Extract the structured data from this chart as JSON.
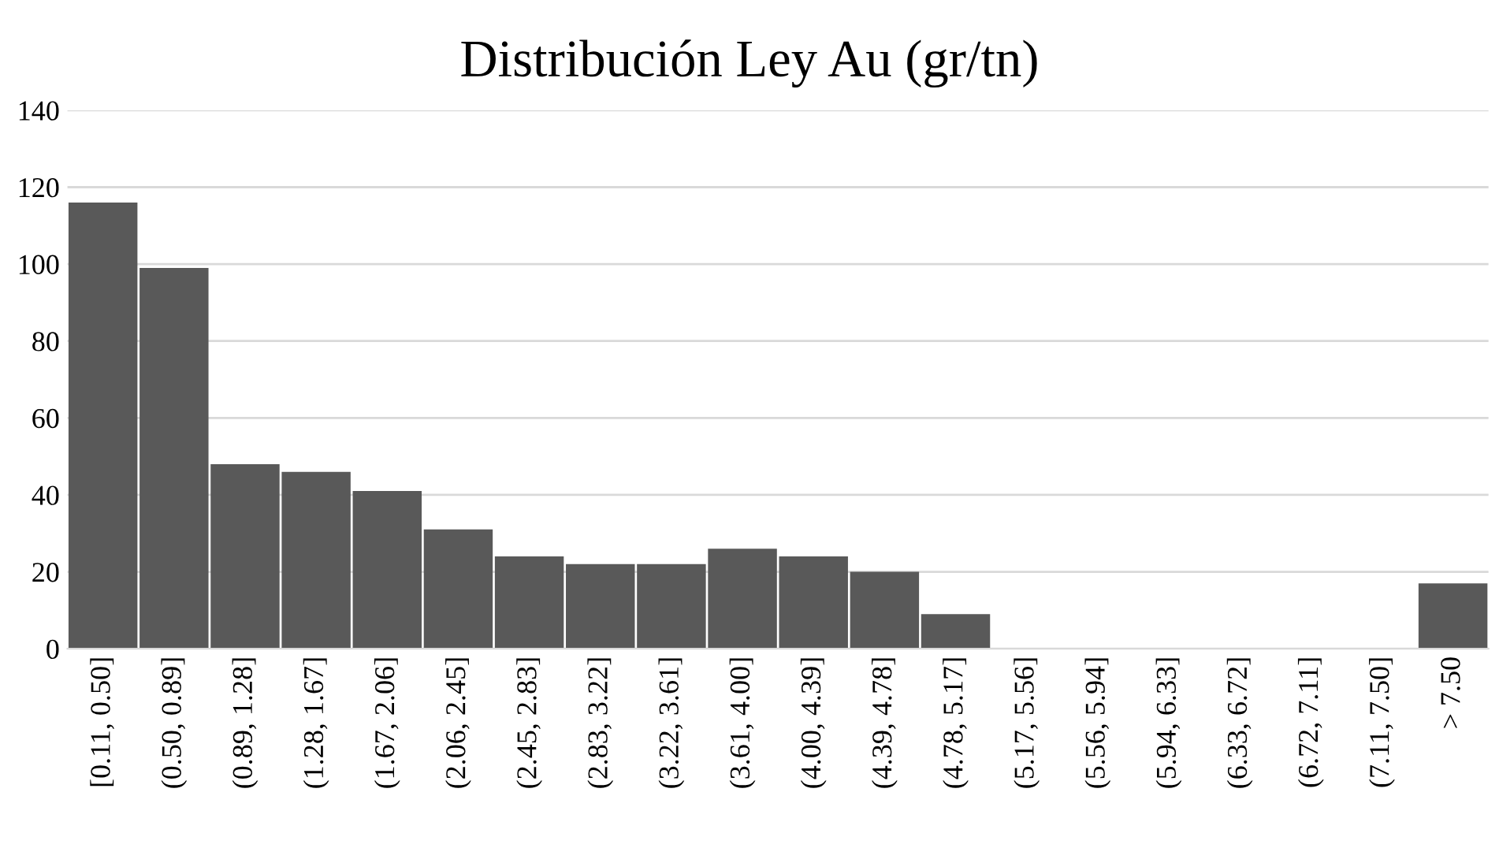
{
  "chart_data": {
    "type": "bar",
    "title": "Distribución Ley Au (gr/tn)",
    "categories": [
      "[0.11, 0.50]",
      "(0.50, 0.89]",
      "(0.89, 1.28]",
      "(1.28, 1.67]",
      "(1.67, 2.06]",
      "(2.06, 2.45]",
      "(2.45, 2.83]",
      "(2.83, 3.22]",
      "(3.22, 3.61]",
      "(3.61, 4.00]",
      "(4.00, 4.39]",
      "(4.39, 4.78]",
      "(4.78, 5.17]",
      "(5.17, 5.56]",
      "(5.56, 5.94]",
      "(5.94, 6.33]",
      "(6.33, 6.72]",
      "(6.72, 7.11]",
      "(7.11, 7.50]",
      "> 7.50"
    ],
    "values": [
      116,
      99,
      48,
      46,
      41,
      31,
      24,
      22,
      22,
      26,
      24,
      20,
      9,
      0,
      0,
      0,
      0,
      0,
      0,
      17
    ],
    "color": "#595959",
    "ylim": [
      0,
      140
    ],
    "yticks": [
      0,
      20,
      40,
      60,
      80,
      100,
      120,
      140
    ],
    "grid": "y"
  }
}
